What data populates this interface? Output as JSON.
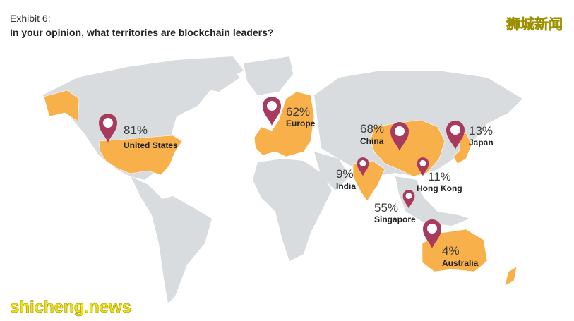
{
  "header": {
    "exhibit": "Exhibit 6:",
    "title": "In your opinion, what territories are blockchain leaders?"
  },
  "regions": [
    {
      "value_label": "81%",
      "name": "United States"
    },
    {
      "value_label": "62%",
      "name": "Europe"
    },
    {
      "value_label": "68%",
      "name": "China"
    },
    {
      "value_label": "13%",
      "name": "Japan"
    },
    {
      "value_label": "9%",
      "name": "India"
    },
    {
      "value_label": "11%",
      "name": "Hong Kong"
    },
    {
      "value_label": "55%",
      "name": "Singapore"
    },
    {
      "value_label": "4%",
      "name": "Australia"
    }
  ],
  "watermark": {
    "cn": "狮城新闻",
    "en": "shicheng.news"
  }
}
